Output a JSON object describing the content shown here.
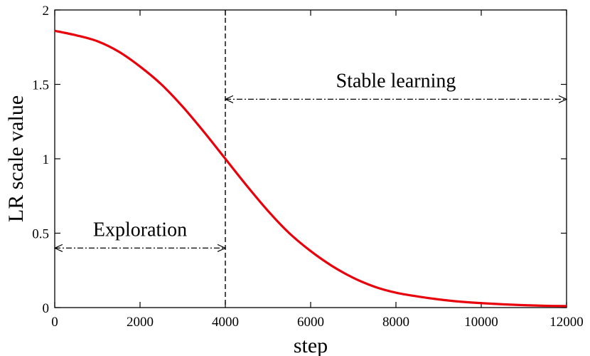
{
  "chart_data": {
    "type": "line",
    "title": "",
    "xlabel": "step",
    "ylabel": "LR scale value",
    "xlim": [
      0,
      12000
    ],
    "ylim": [
      0,
      2
    ],
    "xticks": [
      0,
      2000,
      4000,
      6000,
      8000,
      10000,
      12000
    ],
    "yticks": [
      0,
      0.5,
      1,
      1.5,
      2
    ],
    "xtick_labels": [
      "0",
      "2000",
      "4000",
      "6000",
      "8000",
      "10000",
      "12000"
    ],
    "ytick_labels": [
      "0",
      "0.5",
      "1",
      "1.5",
      "2"
    ],
    "grid": false,
    "series": [
      {
        "color": "#e8000b",
        "x": [
          0,
          500,
          1000,
          1500,
          2000,
          2500,
          3000,
          3500,
          4000,
          4500,
          5000,
          5500,
          6000,
          6500,
          7000,
          7500,
          8000,
          8500,
          9000,
          9500,
          10000,
          10500,
          11000,
          11500,
          12000
        ],
        "y": [
          1.86,
          1.83,
          1.79,
          1.72,
          1.62,
          1.5,
          1.35,
          1.18,
          1.0,
          0.82,
          0.65,
          0.5,
          0.38,
          0.28,
          0.2,
          0.14,
          0.1,
          0.075,
          0.055,
          0.04,
          0.03,
          0.022,
          0.016,
          0.012,
          0.01
        ]
      }
    ],
    "vline": {
      "x": 4000,
      "style": "dashed"
    },
    "annotations": [
      {
        "label": "Exploration",
        "arrow_from": 0,
        "arrow_to": 4000,
        "arrow_y": 0.4,
        "text_x": 2000,
        "text_y": 0.48
      },
      {
        "label": "Stable learning",
        "arrow_from": 4000,
        "arrow_to": 12000,
        "arrow_y": 1.4,
        "text_x": 8000,
        "text_y": 1.48
      }
    ]
  }
}
